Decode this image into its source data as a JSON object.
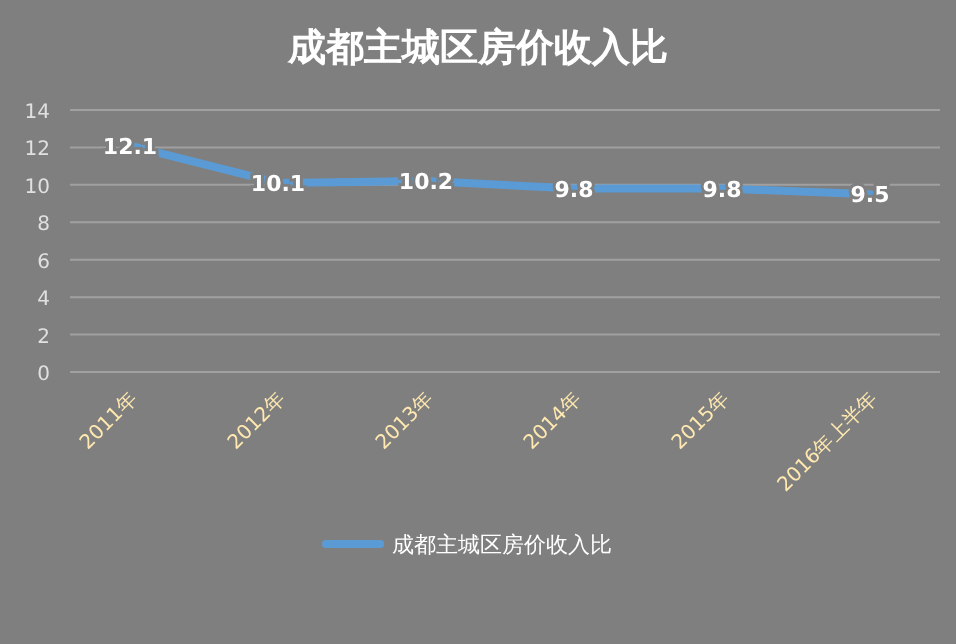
{
  "chart_data": {
    "type": "line",
    "title": "成都主城区房价收入比",
    "categories": [
      "2011年",
      "2012年",
      "2013年",
      "2014年",
      "2015年",
      "2016年上半年"
    ],
    "series": [
      {
        "name": "成都主城区房价收入比",
        "color": "#5b9bd5",
        "values": [
          12.1,
          10.1,
          10.2,
          9.8,
          9.8,
          9.5
        ]
      }
    ],
    "ylim": [
      0,
      14
    ],
    "yticks": [
      0,
      2,
      4,
      6,
      8,
      10,
      12,
      14
    ],
    "grid": "y",
    "legend": "bottom",
    "data_labels": true,
    "marker": "none",
    "line_style": "solid"
  }
}
